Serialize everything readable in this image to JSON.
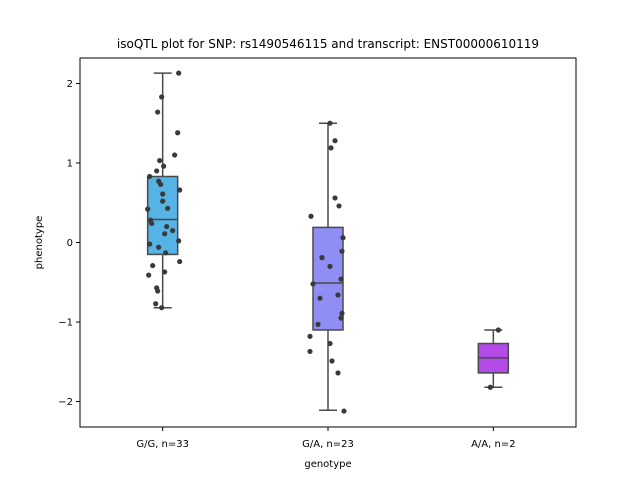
{
  "chart_data": {
    "type": "box",
    "title": "isoQTL plot for SNP: rs1490546115 and transcript: ENST00000610119",
    "xlabel": "genotype",
    "ylabel": "phenotype",
    "ylim": [
      -2.32,
      2.32
    ],
    "yticks": [
      -2,
      -1,
      0,
      1,
      2
    ],
    "ytick_labels": [
      "−2",
      "−1",
      "0",
      "1",
      "2"
    ],
    "grid": false,
    "legend": "none",
    "categories": [
      "G/G, n=33",
      "G/A, n=23",
      "A/A, n=2"
    ],
    "boxes": [
      {
        "category": "G/G, n=33",
        "color": "#55b3e6",
        "q1": -0.15,
        "median": 0.29,
        "q3": 0.83,
        "whisker_low": -0.82,
        "whisker_high": 2.13
      },
      {
        "category": "G/A, n=23",
        "color": "#8f8ef5",
        "q1": -1.1,
        "median": -0.51,
        "q3": 0.19,
        "whisker_low": -2.11,
        "whisker_high": 1.5
      },
      {
        "category": "A/A, n=2",
        "color": "#b24be8",
        "q1": -1.64,
        "median": -1.45,
        "q3": -1.27,
        "whisker_low": -1.82,
        "whisker_high": -1.1
      }
    ],
    "points": [
      [
        [
          0.16,
          2.13
        ],
        [
          -0.01,
          1.83
        ],
        [
          -0.05,
          1.64
        ],
        [
          0.15,
          1.38
        ],
        [
          0.12,
          1.1
        ],
        [
          -0.03,
          1.03
        ],
        [
          0.01,
          0.96
        ],
        [
          -0.06,
          0.9
        ],
        [
          -0.13,
          0.83
        ],
        [
          -0.04,
          0.77
        ],
        [
          -0.02,
          0.73
        ],
        [
          0.17,
          0.66
        ],
        [
          0.0,
          0.61
        ],
        [
          0.0,
          0.52
        ],
        [
          0.05,
          0.43
        ],
        [
          -0.15,
          0.42
        ],
        [
          -0.12,
          0.28
        ],
        [
          -0.11,
          0.24
        ],
        [
          0.04,
          0.2
        ],
        [
          0.1,
          0.15
        ],
        [
          0.02,
          0.11
        ],
        [
          0.16,
          0.02
        ],
        [
          -0.13,
          -0.02
        ],
        [
          -0.04,
          -0.06
        ],
        [
          0.03,
          -0.13
        ],
        [
          0.17,
          -0.24
        ],
        [
          -0.1,
          -0.29
        ],
        [
          0.02,
          -0.37
        ],
        [
          -0.14,
          -0.41
        ],
        [
          -0.06,
          -0.57
        ],
        [
          -0.05,
          -0.61
        ],
        [
          -0.07,
          -0.77
        ],
        [
          -0.01,
          -0.82
        ]
      ],
      [
        [
          0.02,
          1.5
        ],
        [
          0.07,
          1.28
        ],
        [
          0.03,
          1.19
        ],
        [
          0.07,
          0.56
        ],
        [
          0.11,
          0.46
        ],
        [
          -0.17,
          0.33
        ],
        [
          0.15,
          0.06
        ],
        [
          0.14,
          -0.11
        ],
        [
          -0.06,
          -0.19
        ],
        [
          0.02,
          -0.3
        ],
        [
          0.13,
          -0.46
        ],
        [
          -0.15,
          -0.52
        ],
        [
          -0.08,
          -0.7
        ],
        [
          0.1,
          -0.66
        ],
        [
          0.14,
          -0.89
        ],
        [
          0.13,
          -0.95
        ],
        [
          -0.1,
          -1.03
        ],
        [
          -0.18,
          -1.18
        ],
        [
          0.02,
          -1.27
        ],
        [
          -0.18,
          -1.37
        ],
        [
          0.04,
          -1.49
        ],
        [
          0.1,
          -1.64
        ],
        [
          0.16,
          -2.12
        ]
      ],
      [
        [
          0.05,
          -1.1
        ],
        [
          -0.03,
          -1.82
        ]
      ]
    ]
  }
}
